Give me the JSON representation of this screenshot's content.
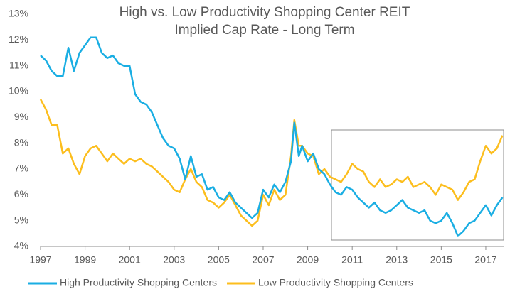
{
  "chart_data": {
    "type": "line",
    "title": "High vs. Low Productivity Shopping Center REIT",
    "subtitle": "Implied Cap Rate - Long Term",
    "x": [
      1997.0,
      1997.25,
      1997.5,
      1997.75,
      1998.0,
      1998.25,
      1998.5,
      1998.75,
      1999.0,
      1999.25,
      1999.5,
      1999.75,
      2000.0,
      2000.25,
      2000.5,
      2000.75,
      2001.0,
      2001.25,
      2001.5,
      2001.75,
      2002.0,
      2002.25,
      2002.5,
      2002.75,
      2003.0,
      2003.25,
      2003.5,
      2003.75,
      2004.0,
      2004.25,
      2004.5,
      2004.75,
      2005.0,
      2005.25,
      2005.5,
      2005.75,
      2006.0,
      2006.25,
      2006.5,
      2006.75,
      2007.0,
      2007.25,
      2007.5,
      2007.75,
      2008.0,
      2008.25,
      2008.4,
      2008.6,
      2008.75,
      2009.0,
      2009.25,
      2009.5,
      2009.75,
      2010.0,
      2010.25,
      2010.5,
      2010.75,
      2011.0,
      2011.25,
      2011.5,
      2011.75,
      2012.0,
      2012.25,
      2012.5,
      2012.75,
      2013.0,
      2013.25,
      2013.5,
      2013.75,
      2014.0,
      2014.25,
      2014.5,
      2014.75,
      2015.0,
      2015.25,
      2015.5,
      2015.75,
      2016.0,
      2016.25,
      2016.5,
      2016.75,
      2017.0,
      2017.25,
      2017.5,
      2017.75
    ],
    "series": [
      {
        "name": "High Productivity Shopping Centers",
        "color": "#1aaee3",
        "values": [
          11.4,
          11.2,
          10.8,
          10.6,
          10.6,
          11.7,
          10.8,
          11.5,
          11.8,
          12.1,
          12.1,
          11.5,
          11.3,
          11.4,
          11.1,
          11.0,
          11.0,
          9.9,
          9.6,
          9.5,
          9.2,
          8.7,
          8.2,
          7.9,
          7.8,
          7.4,
          6.6,
          7.5,
          6.7,
          6.8,
          6.2,
          6.3,
          5.9,
          5.8,
          6.1,
          5.7,
          5.5,
          5.3,
          5.1,
          5.3,
          6.2,
          5.9,
          6.4,
          6.1,
          6.5,
          7.3,
          8.8,
          7.5,
          7.9,
          7.3,
          7.6,
          7.0,
          6.8,
          6.4,
          6.1,
          6.0,
          6.3,
          6.2,
          5.9,
          5.7,
          5.5,
          5.7,
          5.4,
          5.3,
          5.4,
          5.6,
          5.8,
          5.5,
          5.4,
          5.3,
          5.4,
          5.0,
          4.9,
          5.0,
          5.3,
          4.9,
          4.4,
          4.6,
          4.9,
          5.0,
          5.3,
          5.6,
          5.2,
          5.6,
          5.9
        ]
      },
      {
        "name": "Low Productivity Shopping Centers",
        "color": "#fcbe1e",
        "values": [
          9.7,
          9.3,
          8.7,
          8.7,
          7.6,
          7.8,
          7.2,
          6.8,
          7.5,
          7.8,
          7.9,
          7.6,
          7.3,
          7.6,
          7.4,
          7.2,
          7.4,
          7.3,
          7.4,
          7.2,
          7.1,
          6.9,
          6.7,
          6.5,
          6.2,
          6.1,
          6.6,
          7.0,
          6.5,
          6.3,
          5.8,
          5.7,
          5.5,
          5.7,
          6.0,
          5.6,
          5.2,
          5.0,
          4.8,
          5.0,
          6.0,
          5.6,
          6.2,
          5.8,
          6.0,
          7.5,
          8.9,
          7.9,
          7.9,
          7.6,
          7.5,
          6.8,
          7.0,
          6.7,
          6.6,
          6.5,
          6.8,
          7.2,
          7.0,
          6.9,
          6.5,
          6.3,
          6.6,
          6.3,
          6.4,
          6.6,
          6.5,
          6.7,
          6.3,
          6.4,
          6.5,
          6.3,
          6.0,
          6.4,
          6.3,
          6.2,
          5.8,
          6.1,
          6.5,
          6.6,
          7.3,
          7.9,
          7.6,
          7.8,
          8.3
        ]
      }
    ],
    "xlim": [
      1997,
      2017.8
    ],
    "xticks": [
      1997,
      1999,
      2001,
      2003,
      2005,
      2007,
      2009,
      2011,
      2013,
      2015,
      2017
    ],
    "ylim": [
      4,
      13
    ],
    "yticks": [
      {
        "value": 4,
        "label": "4%"
      },
      {
        "value": 5,
        "label": "5%"
      },
      {
        "value": 6,
        "label": "6%"
      },
      {
        "value": 7,
        "label": "7%"
      },
      {
        "value": 8,
        "label": "8%"
      },
      {
        "value": 9,
        "label": "9%"
      },
      {
        "value": 10,
        "label": "10%"
      },
      {
        "value": 11,
        "label": "11%"
      },
      {
        "value": 12,
        "label": "12%"
      },
      {
        "value": 13,
        "label": "13%"
      }
    ],
    "grid": false,
    "legend": "bottom"
  }
}
